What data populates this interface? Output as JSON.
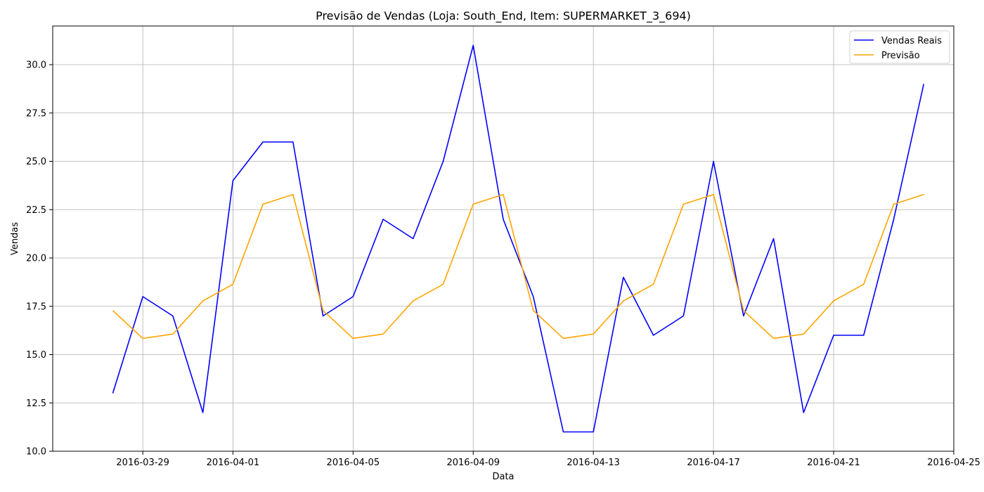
{
  "chart_data": {
    "type": "line",
    "title": "Previsão de Vendas (Loja: South_End, Item: SUPERMARKET_3_694)",
    "xlabel": "Data",
    "ylabel": "Vendas",
    "xlim": [
      "2016-03-26",
      "2016-04-25"
    ],
    "ylim": [
      10.0,
      32.0
    ],
    "x_ticks": [
      "2016-03-29",
      "2016-04-01",
      "2016-04-05",
      "2016-04-09",
      "2016-04-13",
      "2016-04-17",
      "2016-04-21",
      "2016-04-25"
    ],
    "y_ticks": [
      "10.0",
      "12.5",
      "15.0",
      "17.5",
      "20.0",
      "22.5",
      "25.0",
      "27.5",
      "30.0"
    ],
    "grid": true,
    "legend_position": "top-right",
    "x": [
      "2016-03-28",
      "2016-03-29",
      "2016-03-30",
      "2016-03-31",
      "2016-04-01",
      "2016-04-02",
      "2016-04-03",
      "2016-04-04",
      "2016-04-05",
      "2016-04-06",
      "2016-04-07",
      "2016-04-08",
      "2016-04-09",
      "2016-04-10",
      "2016-04-11",
      "2016-04-12",
      "2016-04-13",
      "2016-04-14",
      "2016-04-15",
      "2016-04-16",
      "2016-04-17",
      "2016-04-18",
      "2016-04-19",
      "2016-04-20",
      "2016-04-21",
      "2016-04-22",
      "2016-04-23",
      "2016-04-24"
    ],
    "series": [
      {
        "name": "Vendas Reais",
        "color": "#0000ff",
        "values": [
          13,
          18,
          17,
          12,
          24,
          26,
          26,
          17,
          18,
          22,
          21,
          25,
          31,
          22,
          18,
          11,
          11,
          19,
          16,
          17,
          25,
          17,
          21,
          12,
          16,
          16,
          22,
          29
        ]
      },
      {
        "name": "Previsão",
        "color": "#ffa500",
        "values": [
          17.28,
          15.84,
          16.06,
          17.78,
          18.64,
          22.78,
          23.28,
          17.28,
          15.84,
          16.06,
          17.78,
          18.64,
          22.78,
          23.28,
          17.28,
          15.84,
          16.06,
          17.78,
          18.64,
          22.78,
          23.28,
          17.28,
          15.84,
          16.06,
          17.78,
          18.64,
          22.78,
          23.28
        ]
      }
    ]
  }
}
